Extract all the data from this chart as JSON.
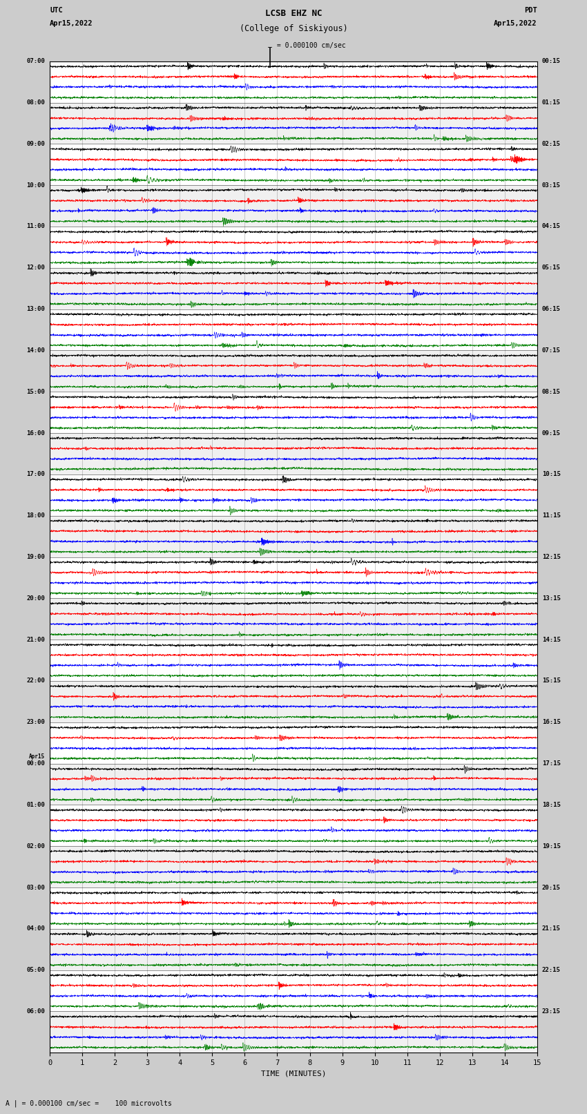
{
  "title_line1": "LCSB EHZ NC",
  "title_line2": "(College of Siskiyous)",
  "scale_label": " = 0.000100 cm/sec",
  "bottom_label": "A | = 0.000100 cm/sec =    100 microvolts",
  "xlabel": "TIME (MINUTES)",
  "left_label": "UTC",
  "left_date": "Apr15,2022",
  "right_label": "PDT",
  "right_date": "Apr15,2022",
  "utc_times": [
    "07:00",
    "08:00",
    "09:00",
    "10:00",
    "11:00",
    "12:00",
    "13:00",
    "14:00",
    "15:00",
    "16:00",
    "17:00",
    "18:00",
    "19:00",
    "20:00",
    "21:00",
    "22:00",
    "23:00",
    "Apr15\n00:00",
    "01:00",
    "02:00",
    "03:00",
    "04:00",
    "05:00",
    "06:00"
  ],
  "pdt_times": [
    "00:15",
    "01:15",
    "02:15",
    "03:15",
    "04:15",
    "05:15",
    "06:15",
    "07:15",
    "08:15",
    "09:15",
    "10:15",
    "11:15",
    "12:15",
    "13:15",
    "14:15",
    "15:15",
    "16:15",
    "17:15",
    "18:15",
    "19:15",
    "20:15",
    "21:15",
    "22:15",
    "23:15"
  ],
  "colors": [
    "black",
    "red",
    "blue",
    "green"
  ],
  "n_rows": 24,
  "traces_per_row": 4,
  "background_color": "#cccccc",
  "plot_bg": "white",
  "fig_width": 8.5,
  "fig_height": 16.13
}
